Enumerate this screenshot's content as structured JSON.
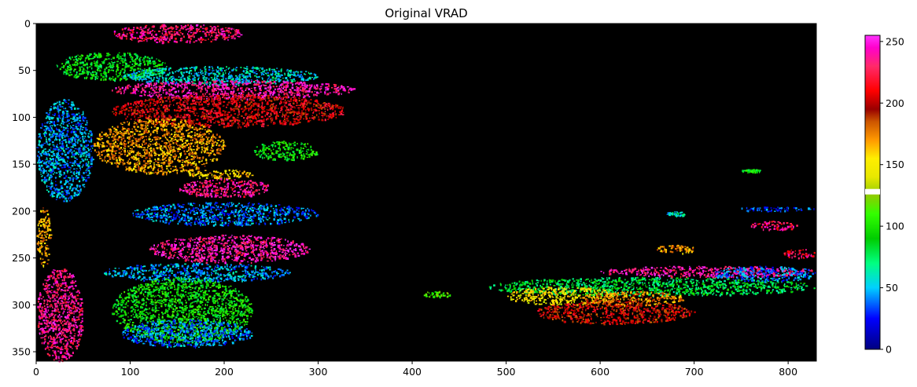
{
  "chart_data": {
    "type": "heatmap",
    "title": "Original VRAD",
    "xlabel": "",
    "ylabel": "",
    "xlim": [
      0,
      830
    ],
    "ylim": [
      360,
      0
    ],
    "x_ticks": [
      0,
      100,
      200,
      300,
      400,
      500,
      600,
      700,
      800
    ],
    "y_ticks": [
      0,
      50,
      100,
      150,
      200,
      250,
      300,
      350
    ],
    "background_value_color": "#000000",
    "colorbar": {
      "range": [
        0,
        255
      ],
      "ticks": [
        0,
        50,
        100,
        150,
        200,
        250
      ],
      "colormap": "gist_ncar-like",
      "gap_value": 128
    },
    "echo_regions": [
      {
        "x": [
          80,
          220
        ],
        "y": [
          0,
          20
        ],
        "value": 232
      },
      {
        "x": [
          20,
          140
        ],
        "y": [
          30,
          60
        ],
        "value": 90
      },
      {
        "x": [
          90,
          300
        ],
        "y": [
          45,
          65
        ],
        "value": 55
      },
      {
        "x": [
          80,
          340
        ],
        "y": [
          60,
          80
        ],
        "value": 240
      },
      {
        "x": [
          80,
          330
        ],
        "y": [
          75,
          110
        ],
        "value": 205
      },
      {
        "x": [
          60,
          200
        ],
        "y": [
          100,
          160
        ],
        "value": 170
      },
      {
        "x": [
          0,
          60
        ],
        "y": [
          80,
          190
        ],
        "value": 45
      },
      {
        "x": [
          230,
          300
        ],
        "y": [
          125,
          145
        ],
        "value": 95
      },
      {
        "x": [
          160,
          230
        ],
        "y": [
          155,
          165
        ],
        "value": 160
      },
      {
        "x": [
          150,
          250
        ],
        "y": [
          165,
          185
        ],
        "value": 235
      },
      {
        "x": [
          100,
          300
        ],
        "y": [
          190,
          215
        ],
        "value": 40
      },
      {
        "x": [
          120,
          290
        ],
        "y": [
          225,
          255
        ],
        "value": 240
      },
      {
        "x": [
          70,
          270
        ],
        "y": [
          255,
          275
        ],
        "value": 45
      },
      {
        "x": [
          80,
          230
        ],
        "y": [
          270,
          340
        ],
        "value": 95
      },
      {
        "x": [
          90,
          230
        ],
        "y": [
          315,
          345
        ],
        "value": 40
      },
      {
        "x": [
          0,
          50
        ],
        "y": [
          260,
          360
        ],
        "value": 235
      },
      {
        "x": [
          0,
          15
        ],
        "y": [
          195,
          260
        ],
        "value": 170
      },
      {
        "x": [
          480,
          830
        ],
        "y": [
          270,
          290
        ],
        "value": 80
      },
      {
        "x": [
          600,
          830
        ],
        "y": [
          258,
          270
        ],
        "value": 240
      },
      {
        "x": [
          500,
          620
        ],
        "y": [
          280,
          300
        ],
        "value": 150
      },
      {
        "x": [
          530,
          700
        ],
        "y": [
          295,
          320
        ],
        "value": 200
      },
      {
        "x": [
          580,
          690
        ],
        "y": [
          285,
          300
        ],
        "value": 175
      },
      {
        "x": [
          720,
          830
        ],
        "y": [
          258,
          275
        ],
        "value": 40
      },
      {
        "x": [
          790,
          830
        ],
        "y": [
          240,
          250
        ],
        "value": 225
      },
      {
        "x": [
          740,
          830
        ],
        "y": [
          195,
          200
        ],
        "value": 30
      },
      {
        "x": [
          760,
          810
        ],
        "y": [
          210,
          220
        ],
        "value": 230
      },
      {
        "x": [
          660,
          700
        ],
        "y": [
          235,
          245
        ],
        "value": 170
      },
      {
        "x": [
          670,
          690
        ],
        "y": [
          200,
          205
        ],
        "value": 60
      },
      {
        "x": [
          410,
          440
        ],
        "y": [
          285,
          292
        ],
        "value": 110
      },
      {
        "x": [
          750,
          770
        ],
        "y": [
          155,
          158
        ],
        "value": 95
      }
    ]
  }
}
